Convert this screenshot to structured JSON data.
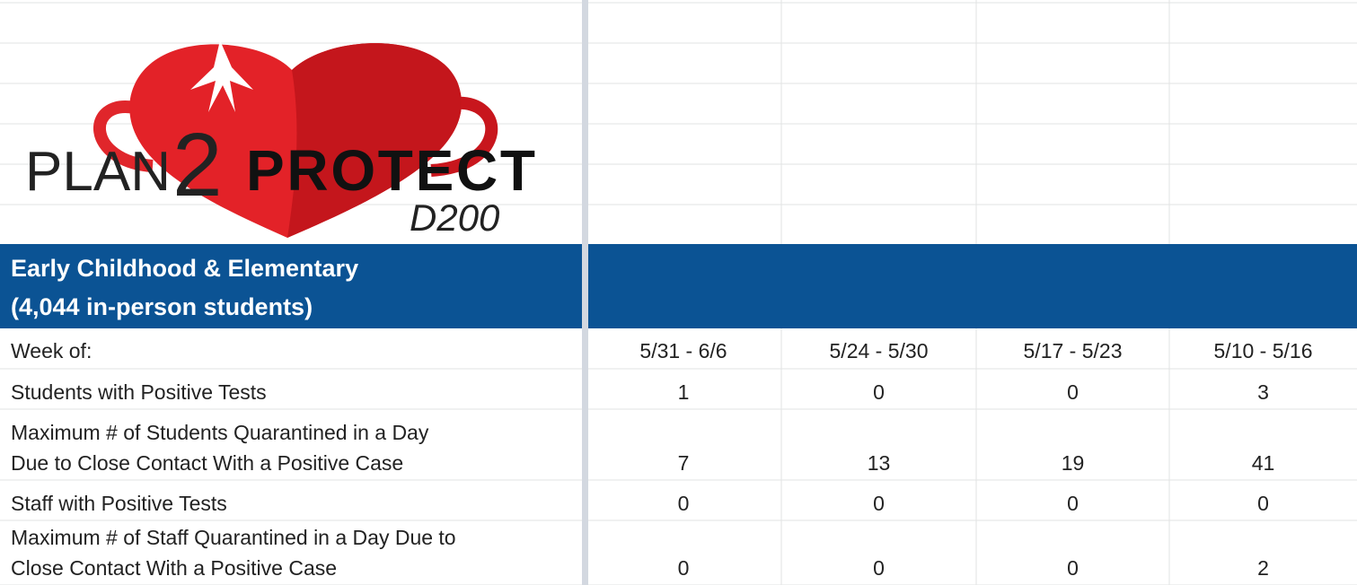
{
  "logo": {
    "plan": "PLAN",
    "two": "2",
    "protect": "PROTECT",
    "district": "D200"
  },
  "section": {
    "title_lines": [
      "Early Childhood & Elementary",
      "(4,044 in-person students)"
    ]
  },
  "table": {
    "header": [
      "Week of:",
      "5/31 - 6/6",
      "5/24 - 5/30",
      "5/17 - 5/23",
      "5/10 - 5/16"
    ],
    "rows": [
      {
        "label_lines": [
          "Students with Positive Tests"
        ],
        "values": [
          1,
          0,
          0,
          3
        ]
      },
      {
        "label_lines": [
          "Maximum # of Students Quarantined in a Day",
          "Due to Close Contact With a Positive Case"
        ],
        "values": [
          7,
          13,
          19,
          41
        ]
      },
      {
        "label_lines": [
          "Staff with Positive Tests"
        ],
        "values": [
          0,
          0,
          0,
          0
        ]
      },
      {
        "label_lines": [
          "Maximum # of Staff Quarantined in a Day Due to",
          "Close Contact With a Positive Case"
        ],
        "values": [
          0,
          0,
          0,
          2
        ]
      }
    ]
  }
}
